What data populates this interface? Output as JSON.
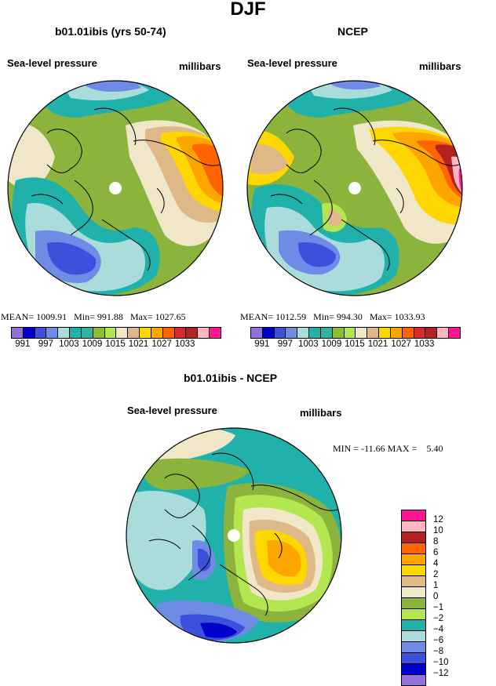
{
  "page_title": "DJF",
  "panels": [
    {
      "title": "b01.01ibis (yrs 50-74)",
      "left_label": "Sea-level pressure",
      "right_label": "millibars",
      "stats": {
        "mean_label": "MEAN=",
        "mean": "1009.91",
        "min_label": "Min=",
        "min": "991.88",
        "max_label": "Max=",
        "max": "1027.65"
      }
    },
    {
      "title": "NCEP",
      "left_label": "Sea-level pressure",
      "right_label": "millibars",
      "stats": {
        "mean_label": "MEAN=",
        "mean": "1012.59",
        "min_label": "Min=",
        "min": "994.30",
        "max_label": "Max=",
        "max": "1033.93"
      }
    },
    {
      "title": "b01.01ibis - NCEP",
      "left_label": "Sea-level pressure",
      "right_label": "millibars",
      "stats": {
        "min_label": "MIN =",
        "min": "-11.66",
        "max_label": "MAX =",
        "max": "5.40"
      }
    }
  ],
  "colorbar_top": {
    "colors": [
      "#9370db",
      "#0000cd",
      "#3c50dc",
      "#6e8ce6",
      "#aadcdc",
      "#20b2aa",
      "#32b4a0",
      "#8cbe32",
      "#b4e650",
      "#f0e6c8",
      "#deb887",
      "#ffd700",
      "#ffa500",
      "#ff6400",
      "#dc2828",
      "#b22222",
      "#ffb6c1",
      "#ff1493"
    ],
    "labels": [
      "991",
      "997",
      "1003",
      "1009",
      "1015",
      "1021",
      "1027",
      "1033"
    ]
  },
  "colorbar_diff": {
    "colors": [
      "#ff1493",
      "#ffb6c1",
      "#b22222",
      "#ff6400",
      "#ffa500",
      "#ffd700",
      "#deb887",
      "#f0e6c8",
      "#8cb43c",
      "#b4e650",
      "#20b2aa",
      "#aadcdc",
      "#6e8ce6",
      "#3c50dc",
      "#0000cd",
      "#9370db"
    ],
    "labels": [
      "12",
      "10",
      "8",
      "6",
      "4",
      "2",
      "1",
      "0",
      "−1",
      "−2",
      "−4",
      "−6",
      "−8",
      "−10",
      "−12"
    ]
  }
}
